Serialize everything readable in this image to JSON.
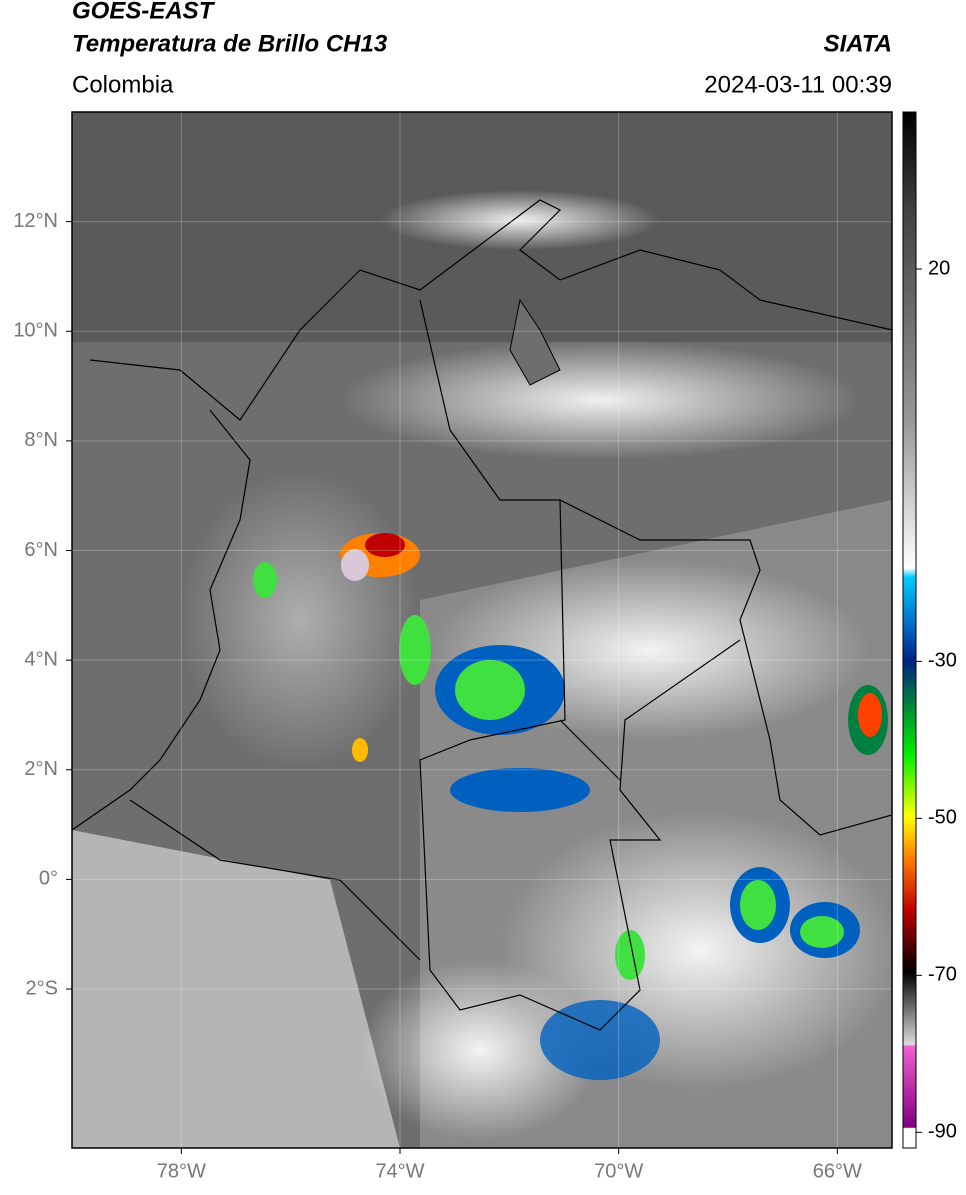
{
  "header": {
    "title": "GOES-EAST",
    "subtitle": "Temperatura de Brillo CH13",
    "source": "SIATA",
    "region": "Colombia",
    "datetime": "2024-03-11 00:39"
  },
  "map": {
    "lon_range": [
      -80,
      -65
    ],
    "lat_range": [
      -4.9,
      14
    ],
    "lon_ticks": [
      {
        "value": -78,
        "label": "78°W"
      },
      {
        "value": -74,
        "label": "74°W"
      },
      {
        "value": -70,
        "label": "70°W"
      },
      {
        "value": -66,
        "label": "66°W"
      }
    ],
    "lat_ticks": [
      {
        "value": 12,
        "label": "12°N"
      },
      {
        "value": 10,
        "label": "10°N"
      },
      {
        "value": 8,
        "label": "8°N"
      },
      {
        "value": 6,
        "label": "6°N"
      },
      {
        "value": 4,
        "label": "4°N"
      },
      {
        "value": 2,
        "label": "2°N"
      },
      {
        "value": 0,
        "label": "0°"
      },
      {
        "value": -2,
        "label": "2°S"
      }
    ]
  },
  "colorbar": {
    "range": [
      -92,
      40
    ],
    "ticks": [
      20,
      -30,
      -50,
      -70,
      -90
    ]
  }
}
